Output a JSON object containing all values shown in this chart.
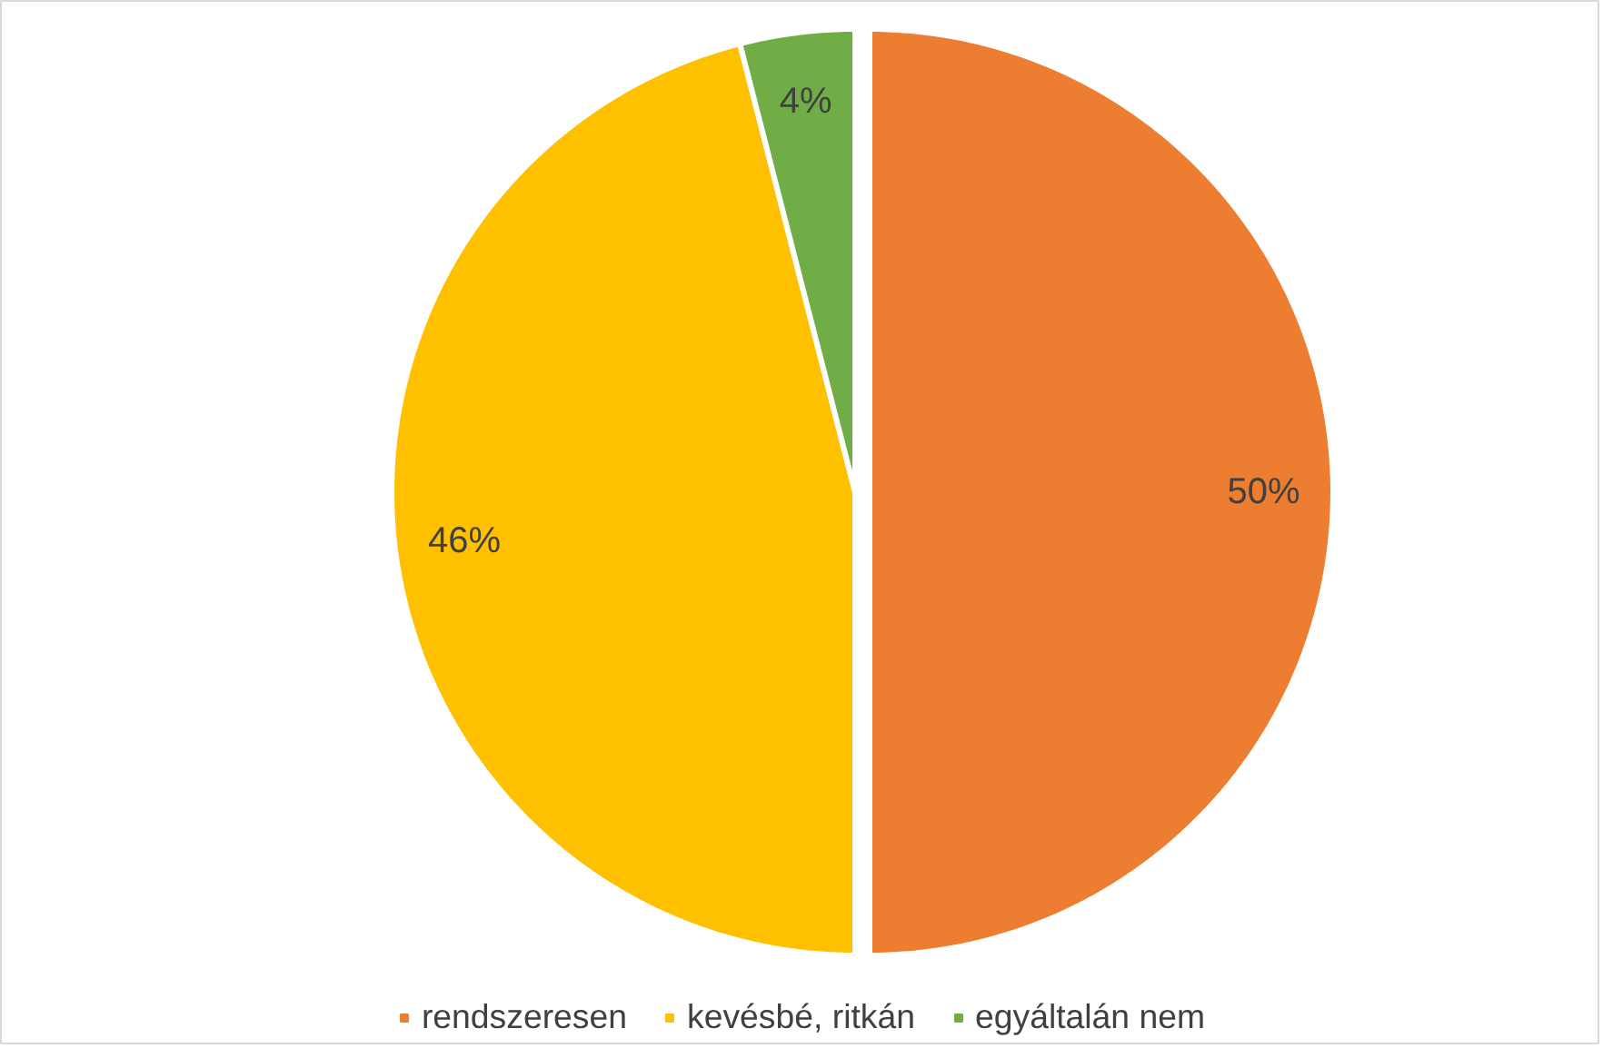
{
  "chart_data": {
    "type": "pie",
    "categories": [
      "rendszeresen",
      "kevésbé, ritkán",
      "egyáltalán nem"
    ],
    "values": [
      50,
      46,
      4
    ],
    "colors": [
      "#ed7d31",
      "#ffc000",
      "#70ad47"
    ],
    "value_labels": [
      "50%",
      "46%",
      "4%"
    ],
    "legend": "bottom"
  }
}
